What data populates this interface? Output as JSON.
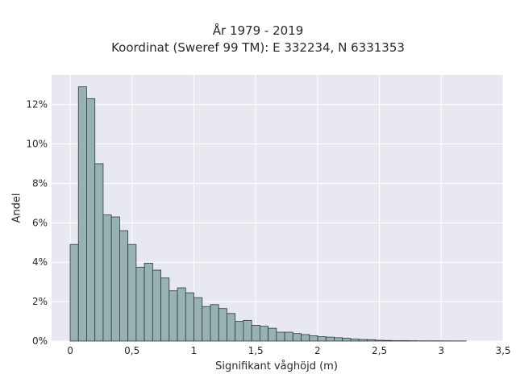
{
  "chart_data": {
    "type": "bar",
    "title": "År 1979 - 2019",
    "subtitle": "Koordinat (Sweref 99 TM): E 332234, N 6331353",
    "xlabel": "Signifikant våghöjd (m)",
    "ylabel": "Andel",
    "xlim": [
      -0.15,
      3.5
    ],
    "ylim": [
      0,
      13.5
    ],
    "xticks": [
      0,
      0.5,
      1,
      1.5,
      2,
      2.5,
      3,
      3.5
    ],
    "xtick_labels": [
      "0",
      "0,5",
      "1",
      "1,5",
      "2",
      "2,5",
      "3",
      "3,5"
    ],
    "yticks": [
      0,
      2,
      4,
      6,
      8,
      10,
      12
    ],
    "ytick_labels": [
      "0%",
      "2%",
      "4%",
      "6%",
      "8%",
      "10%",
      "12%"
    ],
    "bin_width": 0.0667,
    "bin_start": 0,
    "values": [
      4.9,
      12.9,
      12.3,
      9.0,
      6.4,
      6.3,
      5.6,
      4.9,
      3.75,
      3.95,
      3.6,
      3.2,
      2.55,
      2.7,
      2.45,
      2.2,
      1.75,
      1.85,
      1.65,
      1.4,
      1.0,
      1.05,
      0.8,
      0.75,
      0.65,
      0.45,
      0.45,
      0.38,
      0.33,
      0.27,
      0.22,
      0.2,
      0.17,
      0.14,
      0.1,
      0.08,
      0.07,
      0.04,
      0.03,
      0.02,
      0.02,
      0.015,
      0.01,
      0.01,
      0.01,
      0.008,
      0.005,
      0.005
    ],
    "grid": true,
    "colors": {
      "bar_fill": "#98b2b2",
      "bar_edge": "#2b3b3b",
      "plot_bg": "#e8e8f0",
      "grid": "#ffffff"
    }
  }
}
